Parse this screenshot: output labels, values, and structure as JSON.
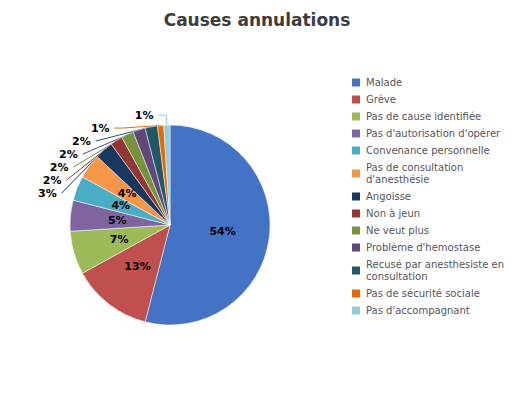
{
  "chart_data": {
    "type": "pie",
    "title": "Causes annulations",
    "categories": [
      "Malade",
      "Grève",
      "Pas de cause identifiée",
      "Pas d'autorisation d'opérer",
      "Convenance personnelle",
      "Pas de consultation\nd'anesthésie",
      "Angoisse",
      "Non à jeun",
      "Ne veut plus",
      "Problème d'hemostase",
      "Recusé par anesthesiste en\nconsultation",
      "Pas de sécurité sociale",
      "Pas d'accompagnant"
    ],
    "values": [
      54,
      13,
      7,
      5,
      4,
      4,
      3,
      2,
      2,
      2,
      2,
      1,
      1
    ],
    "value_labels": [
      "54%",
      "13%",
      "7%",
      "5%",
      "4%",
      "4%",
      "3%",
      "2%",
      "2%",
      "2%",
      "2%",
      "1%",
      "1%"
    ],
    "colors": [
      "#4472C4",
      "#C0504D",
      "#9BBB59",
      "#8064A2",
      "#4BACC6",
      "#F79646",
      "#17375E",
      "#943634",
      "#76923C",
      "#5F497A",
      "#215868",
      "#E36C09",
      "#92CDDC"
    ],
    "data_labels": true,
    "legend": "right"
  }
}
